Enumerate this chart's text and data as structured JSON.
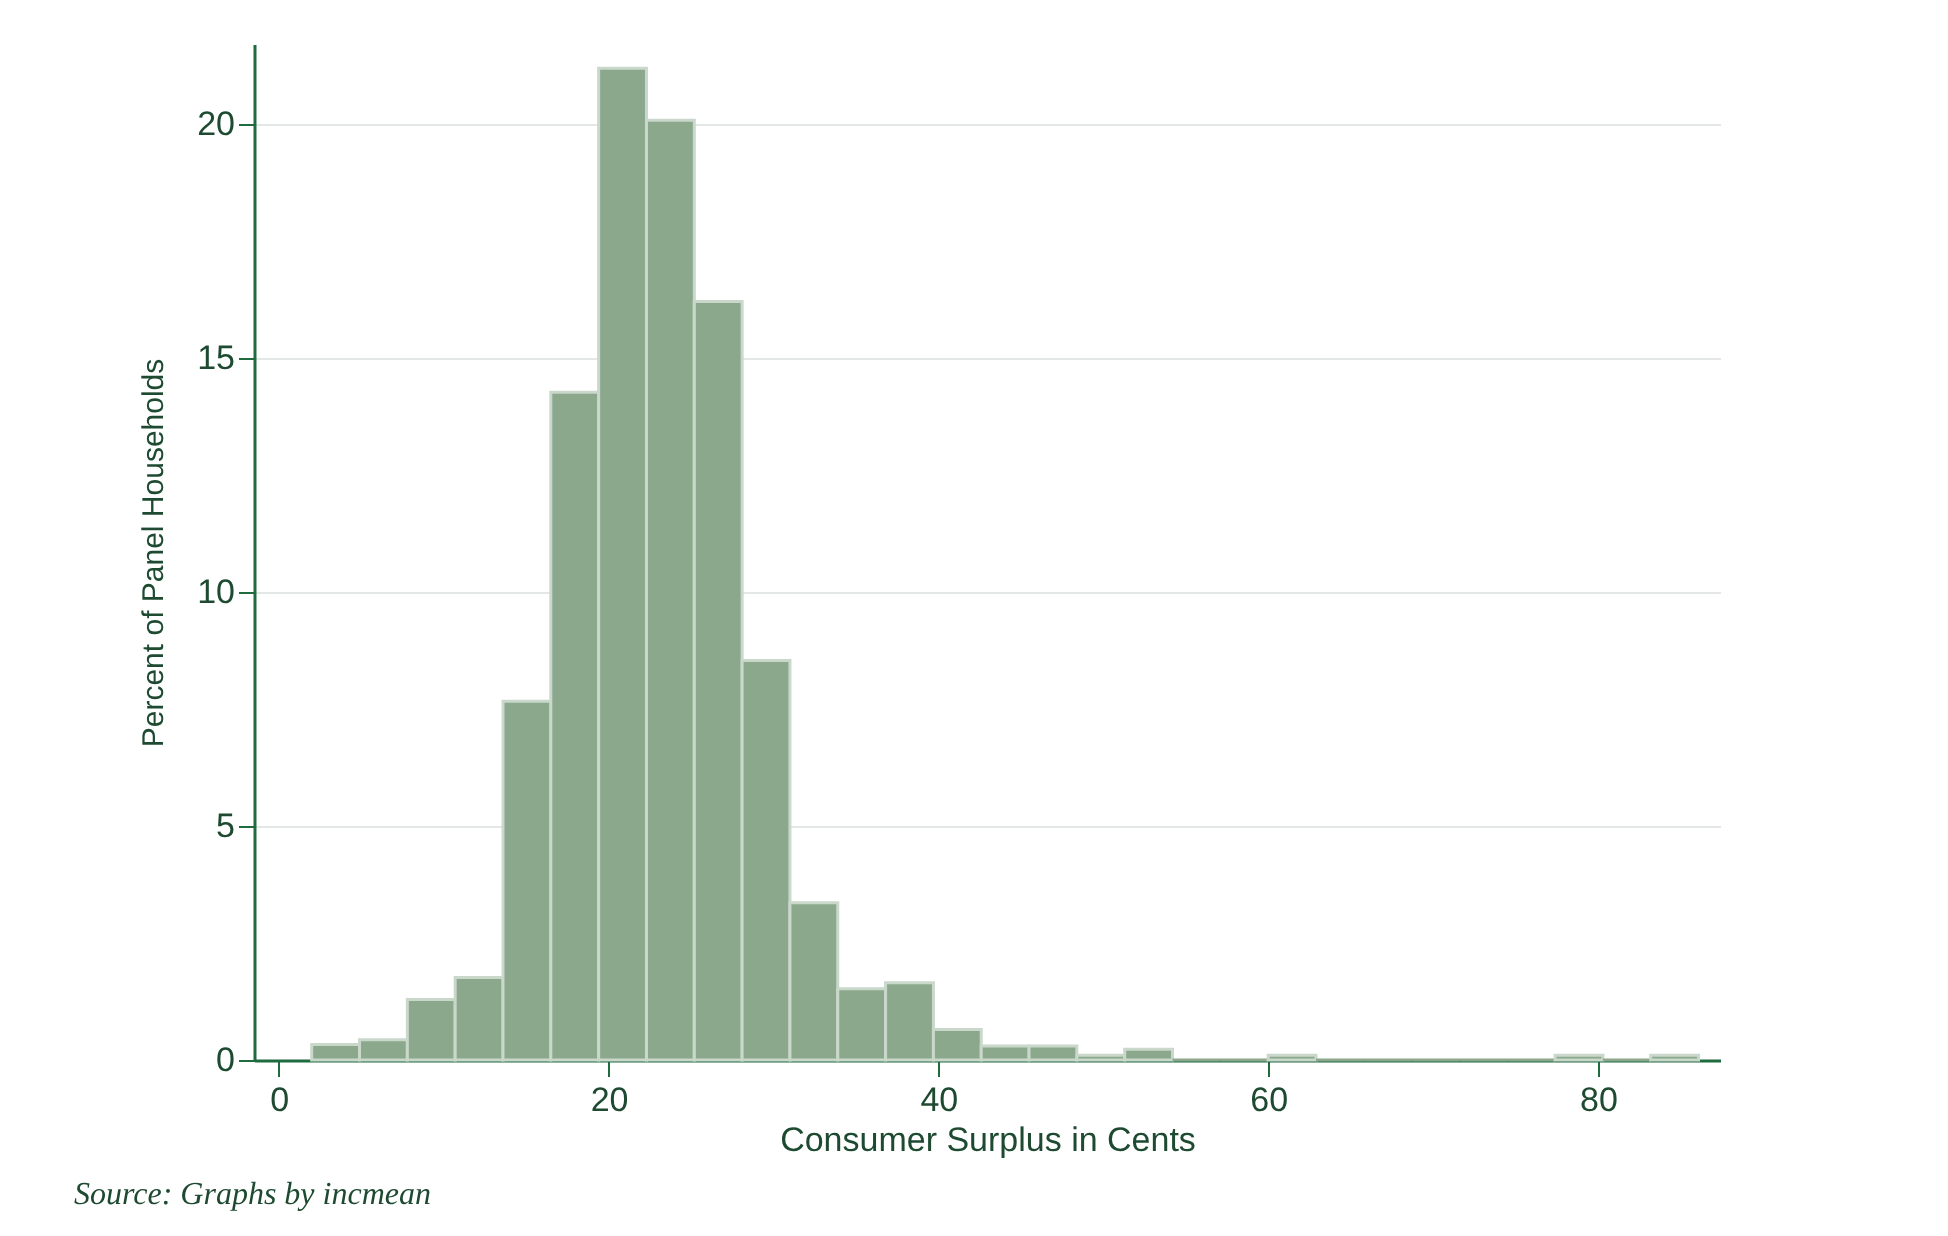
{
  "chart_data": {
    "type": "histogram",
    "xlabel": "Consumer Surplus in Cents",
    "ylabel": "Percent of Panel Households",
    "annotations": [
      "Source: Graphs by incmean"
    ],
    "bins": [
      2.0,
      4.9,
      7.8,
      10.7,
      13.6,
      16.5,
      19.4,
      22.3,
      25.2,
      28.1,
      31.0,
      33.9,
      36.8,
      39.7,
      42.6,
      45.5,
      48.4,
      51.3,
      54.2,
      57.1,
      60.0,
      62.9,
      65.8,
      68.7,
      71.6,
      74.5,
      77.4,
      80.3,
      83.2,
      86.1
    ],
    "values": [
      0.33,
      0.43,
      1.29,
      1.76,
      7.66,
      14.26,
      21.18,
      20.07,
      16.2,
      8.53,
      3.36,
      1.52,
      1.65,
      0.65,
      0.3,
      0.3,
      0.1,
      0.23,
      0,
      0,
      0.1,
      0,
      0,
      0,
      0,
      0,
      0.1,
      0,
      0.1
    ],
    "color": "#8ba88d",
    "xlim": [
      -1.5,
      87.4
    ],
    "ylim": [
      0,
      21.7
    ],
    "xticks": [
      0,
      20,
      40,
      60,
      80
    ],
    "yticks": [
      0,
      5,
      10,
      15,
      20
    ],
    "grid": "y"
  }
}
